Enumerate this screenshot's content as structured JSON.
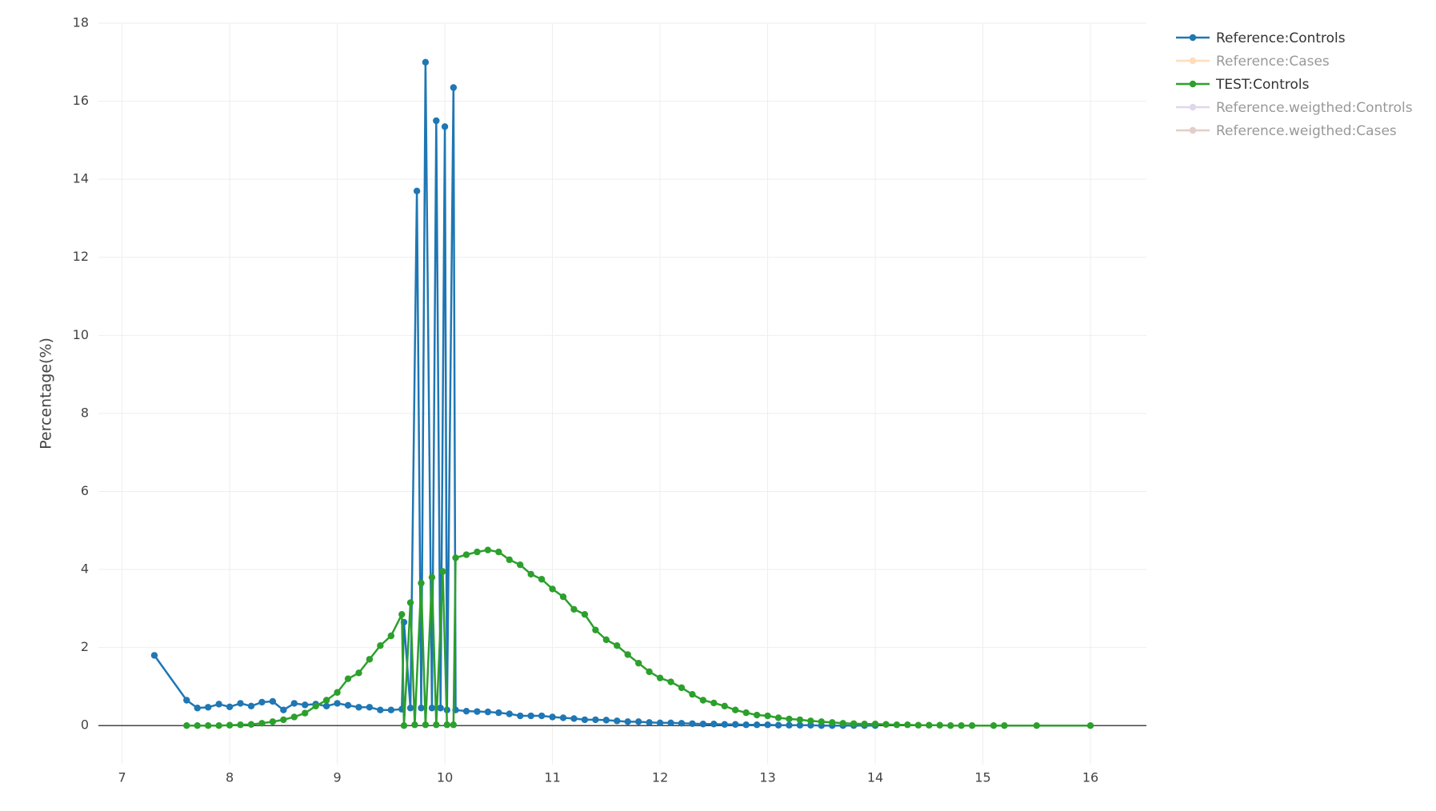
{
  "chart_data": {
    "type": "line",
    "ylabel": "Percentage(%)",
    "xlim": [
      6.78,
      16.52
    ],
    "ylim": [
      -1,
      18
    ],
    "xticks": [
      7,
      8,
      9,
      10,
      11,
      12,
      13,
      14,
      15,
      16
    ],
    "yticks": [
      0,
      2,
      4,
      6,
      8,
      10,
      12,
      14,
      16,
      18
    ],
    "grid": true,
    "legend": "top-right",
    "series": [
      {
        "name": "Reference:Controls",
        "color": "#1f77b4",
        "visible": true,
        "x": [
          7.3,
          7.6,
          7.7,
          7.8,
          7.9,
          8.0,
          8.1,
          8.2,
          8.3,
          8.4,
          8.5,
          8.6,
          8.7,
          8.8,
          8.9,
          9.0,
          9.1,
          9.2,
          9.3,
          9.4,
          9.5,
          9.6,
          9.62,
          9.68,
          9.74,
          9.78,
          9.82,
          9.88,
          9.92,
          9.96,
          10.0,
          10.02,
          10.08,
          10.1,
          10.2,
          10.3,
          10.4,
          10.5,
          10.6,
          10.7,
          10.8,
          10.9,
          11.0,
          11.1,
          11.2,
          11.3,
          11.4,
          11.5,
          11.6,
          11.7,
          11.8,
          11.9,
          12.0,
          12.1,
          12.2,
          12.3,
          12.4,
          12.5,
          12.6,
          12.7,
          12.8,
          12.9,
          13.0,
          13.1,
          13.2,
          13.3,
          13.4,
          13.5,
          13.6,
          13.7,
          13.8,
          13.9,
          14.0
        ],
        "values": [
          1.8,
          0.65,
          0.45,
          0.47,
          0.55,
          0.48,
          0.57,
          0.5,
          0.6,
          0.62,
          0.4,
          0.57,
          0.53,
          0.55,
          0.5,
          0.57,
          0.52,
          0.47,
          0.47,
          0.4,
          0.4,
          0.42,
          2.65,
          0.45,
          13.7,
          0.45,
          17.0,
          0.45,
          15.5,
          0.45,
          15.35,
          0.4,
          16.35,
          0.4,
          0.37,
          0.36,
          0.35,
          0.33,
          0.3,
          0.25,
          0.25,
          0.25,
          0.22,
          0.2,
          0.18,
          0.15,
          0.15,
          0.14,
          0.12,
          0.1,
          0.1,
          0.08,
          0.07,
          0.07,
          0.06,
          0.05,
          0.04,
          0.04,
          0.03,
          0.03,
          0.02,
          0.02,
          0.02,
          0.01,
          0.01,
          0.01,
          0.01,
          0.0,
          0.0,
          0.0,
          0.0,
          0.0,
          0.0
        ]
      },
      {
        "name": "Reference:Cases",
        "color": "#ffbb78",
        "visible": false,
        "x": [],
        "values": []
      },
      {
        "name": "TEST:Controls",
        "color": "#2ca02c",
        "visible": true,
        "x": [
          7.6,
          7.7,
          7.8,
          7.9,
          8.0,
          8.1,
          8.2,
          8.3,
          8.4,
          8.5,
          8.6,
          8.7,
          8.8,
          8.9,
          9.0,
          9.1,
          9.2,
          9.3,
          9.4,
          9.5,
          9.6,
          9.62,
          9.68,
          9.72,
          9.78,
          9.82,
          9.88,
          9.92,
          9.98,
          10.02,
          10.08,
          10.1,
          10.2,
          10.3,
          10.4,
          10.5,
          10.6,
          10.7,
          10.8,
          10.9,
          11.0,
          11.1,
          11.2,
          11.3,
          11.4,
          11.5,
          11.6,
          11.7,
          11.8,
          11.9,
          12.0,
          12.1,
          12.2,
          12.3,
          12.4,
          12.5,
          12.6,
          12.7,
          12.8,
          12.9,
          13.0,
          13.1,
          13.2,
          13.3,
          13.4,
          13.5,
          13.6,
          13.7,
          13.8,
          13.9,
          14.0,
          14.1,
          14.2,
          14.3,
          14.4,
          14.5,
          14.6,
          14.7,
          14.8,
          14.9,
          15.1,
          15.2,
          15.5,
          16.0
        ],
        "values": [
          0.0,
          0.0,
          0.0,
          0.0,
          0.01,
          0.02,
          0.03,
          0.06,
          0.1,
          0.15,
          0.22,
          0.32,
          0.5,
          0.65,
          0.85,
          1.2,
          1.35,
          1.7,
          2.05,
          2.3,
          2.85,
          0.0,
          3.15,
          0.02,
          3.65,
          0.02,
          3.8,
          0.02,
          3.95,
          0.02,
          0.02,
          4.3,
          4.38,
          4.45,
          4.5,
          4.45,
          4.25,
          4.12,
          3.88,
          3.75,
          3.5,
          3.3,
          2.98,
          2.85,
          2.45,
          2.2,
          2.05,
          1.82,
          1.6,
          1.38,
          1.22,
          1.12,
          0.97,
          0.8,
          0.65,
          0.58,
          0.5,
          0.4,
          0.33,
          0.27,
          0.25,
          0.2,
          0.17,
          0.15,
          0.12,
          0.1,
          0.08,
          0.06,
          0.05,
          0.04,
          0.04,
          0.03,
          0.02,
          0.02,
          0.01,
          0.01,
          0.01,
          0.0,
          0.0,
          0.0,
          0.0,
          0.0,
          0.0,
          0.0
        ]
      },
      {
        "name": "Reference.weigthed:Controls",
        "color": "#c5b0d5",
        "visible": false,
        "x": [],
        "values": []
      },
      {
        "name": "Reference.weigthed:Cases",
        "color": "#c49c94",
        "visible": false,
        "x": [],
        "values": []
      }
    ]
  }
}
